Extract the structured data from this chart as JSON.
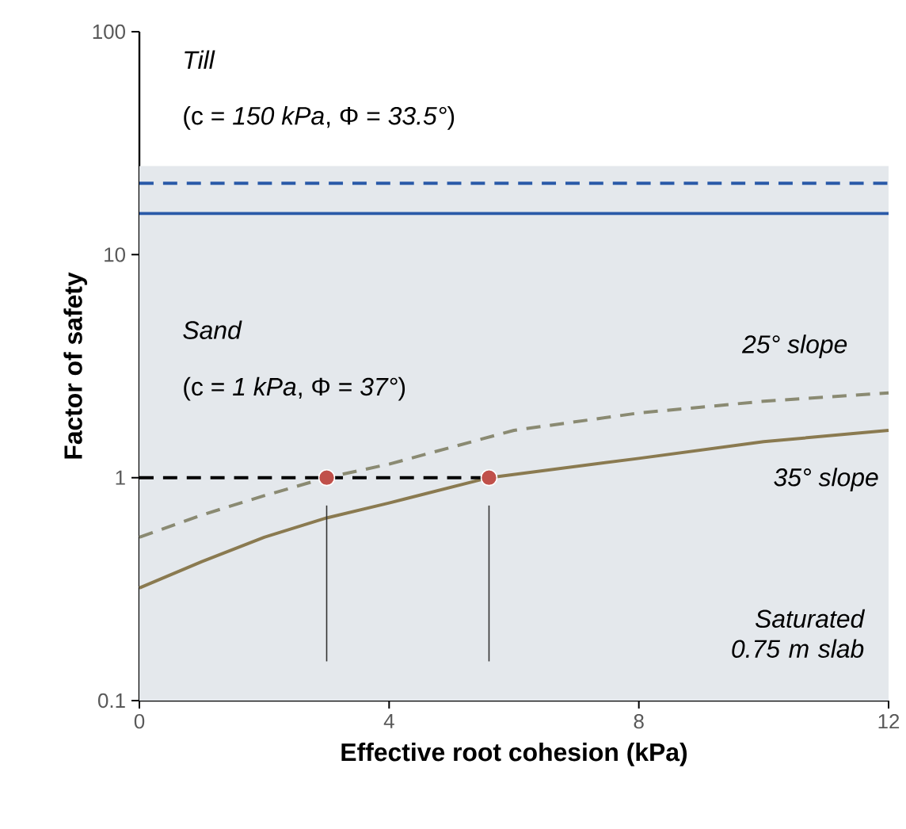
{
  "chart_data": {
    "type": "line",
    "xlabel": "Effective root cohesion (kPa)",
    "ylabel": "Factor of safety",
    "log": "y",
    "xlim": [
      0,
      12
    ],
    "xticks": [
      0,
      4,
      8,
      12
    ],
    "ylim": [
      0.1,
      100
    ],
    "yticks": [
      0.1,
      1,
      10,
      100
    ],
    "grid": false,
    "marker": "none",
    "bands": [
      {
        "axis": "y",
        "from": 0.1,
        "to": 25,
        "color": "#e4e8ec"
      }
    ],
    "series": [
      {
        "x": [
          0,
          12
        ],
        "values": [
          20.9,
          20.9
        ],
        "color": "#2a5aa8",
        "line_style": "dashed"
      },
      {
        "x": [
          0,
          12
        ],
        "values": [
          15.3,
          15.3
        ],
        "color": "#2a5aa8",
        "line_style": "solid"
      },
      {
        "name": "25° slope",
        "x": [
          0,
          1,
          2,
          3,
          4,
          6,
          8,
          10,
          12
        ],
        "values": [
          0.54,
          0.68,
          0.83,
          1.0,
          1.15,
          1.63,
          1.95,
          2.2,
          2.4
        ],
        "color": "#8a8a72",
        "line_style": "dashed"
      },
      {
        "name": "35° slope",
        "x": [
          0,
          1,
          2,
          3,
          4,
          5.6,
          8,
          10,
          12
        ],
        "values": [
          0.32,
          0.42,
          0.54,
          0.66,
          0.77,
          1.0,
          1.22,
          1.45,
          1.63
        ],
        "color": "#8a7a50",
        "line_style": "solid"
      },
      {
        "x": [
          0,
          5.6
        ],
        "values": [
          1,
          1
        ],
        "color": "#000000",
        "line_style": "dashed"
      },
      {
        "x": [
          3,
          3
        ],
        "values": [
          0.75,
          0.15
        ],
        "color": "#333333",
        "line_style": "solid"
      },
      {
        "x": [
          5.6,
          5.6
        ],
        "values": [
          0.75,
          0.15
        ],
        "color": "#333333",
        "line_style": "solid"
      },
      {
        "type": "scatter",
        "x": [
          3,
          5.6
        ],
        "values": [
          1,
          1
        ],
        "color": "#c0504a",
        "marker": "circle"
      }
    ],
    "annotations": [
      "Till",
      "(c = *150 kPa*,  Φ = *33.5°*)",
      "Sand",
      "(c = *1 kPa*, Φ = *37°*)",
      "Saturated 0.75 m slab"
    ]
  }
}
